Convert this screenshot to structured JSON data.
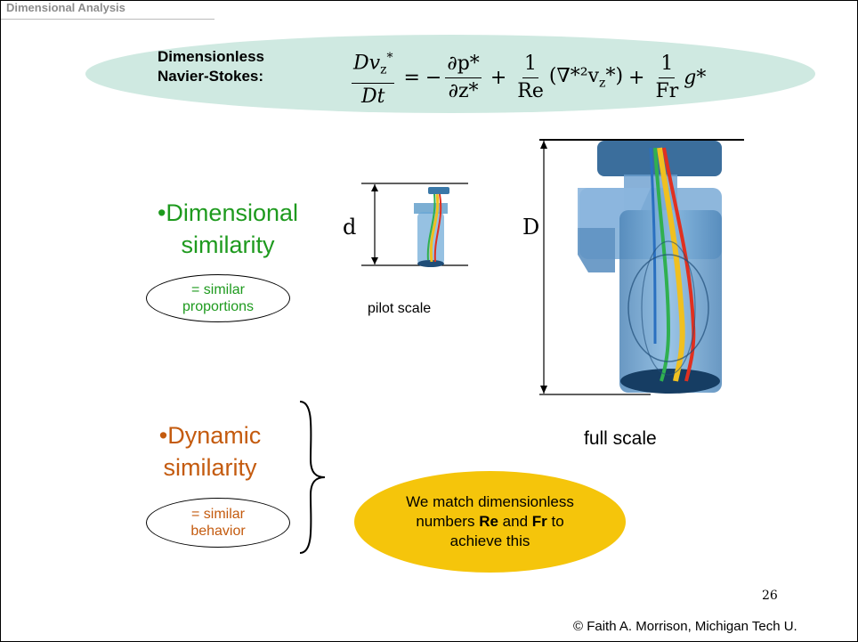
{
  "header": {
    "title": "Dimensional Analysis"
  },
  "equation": {
    "label_line1": "Dimensionless",
    "label_line2": "Navier-Stokes:",
    "lhs_num": "Dv",
    "lhs_sub": "z",
    "lhs_sup": "*",
    "lhs_den": "Dt",
    "eq_sign": "=",
    "minus": "−",
    "t1_num": "∂p*",
    "t1_den": "∂z*",
    "plus1": "+",
    "t2_num": "1",
    "t2_den": "Re",
    "t2_body": "(∇*²v",
    "t2_sub": "z",
    "t2_tail": "*)",
    "plus2": "+",
    "t3_num": "1",
    "t3_den": "Fr",
    "t3_body": "g*"
  },
  "dimensional": {
    "bullet_line1": "•Dimensional",
    "bullet_line2": "similarity",
    "note_line1": "= similar",
    "note_line2": "proportions",
    "color": "#1e9a1e"
  },
  "pilot": {
    "dim_label": "d",
    "caption": "pilot scale"
  },
  "full": {
    "dim_label": "D",
    "caption": "full scale"
  },
  "dynamic": {
    "bullet_line1": "•Dynamic",
    "bullet_line2": "similarity",
    "note_line1": "= similar",
    "note_line2": "behavior",
    "color": "#c45b0f"
  },
  "summary": {
    "line1": "We match dimensionless",
    "line2_pre": "numbers ",
    "re": "Re",
    "and": " and ",
    "fr": "Fr",
    "line2_post": " to",
    "line3": "achieve this",
    "color": "#f5c50b"
  },
  "footer": {
    "page_number": "26",
    "copyright": "© Faith A. Morrison, Michigan Tech U."
  }
}
